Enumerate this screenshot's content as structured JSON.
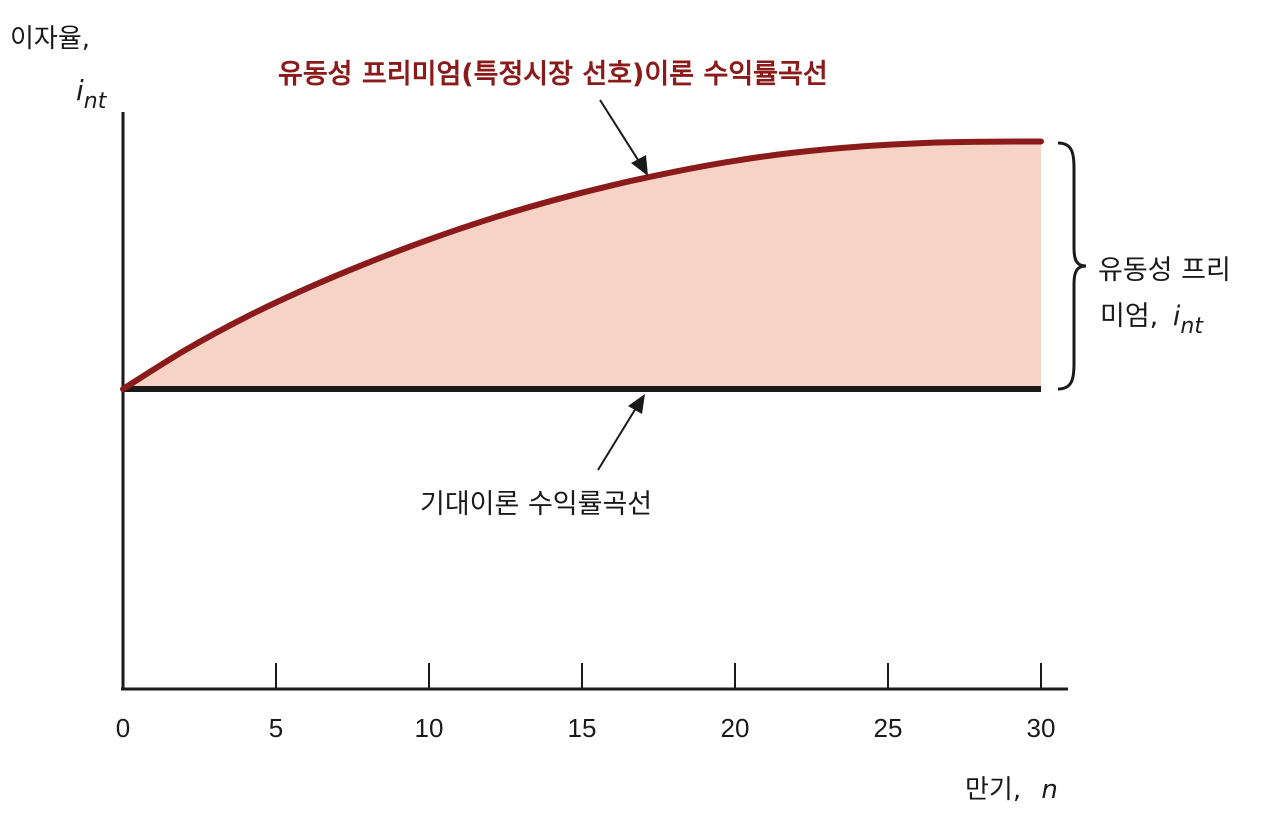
{
  "chart_data": {
    "type": "line",
    "xlabel": {
      "text": "만기,",
      "var": "n"
    },
    "ylabel": {
      "text": "이자율,",
      "var": "i",
      "sub": "nt"
    },
    "xlim": [
      0,
      30
    ],
    "x_ticks": [
      "0",
      "5",
      "10",
      "15",
      "20",
      "25",
      "30"
    ],
    "x_tick_values": [
      0,
      5,
      10,
      15,
      20,
      25,
      30
    ],
    "grid": false,
    "series": [
      {
        "name": "유동성 프리미엄(특정시장 선호)이론 수익률곡선",
        "color": "#8b1a1a",
        "x": [
          0,
          2,
          4,
          6,
          8,
          10,
          12,
          14,
          16,
          18,
          20,
          22,
          24,
          26,
          28,
          30
        ],
        "y": [
          0,
          15.5,
          29,
          40.7,
          51.1,
          60.5,
          68.9,
          76.2,
          82.5,
          87.9,
          92.4,
          95.8,
          98.1,
          99.5,
          100.1,
          100.2
        ]
      },
      {
        "name": "기대이론 수익률곡선",
        "color": "#1a1a1a",
        "x": [
          0,
          30
        ],
        "y": [
          0,
          0
        ]
      }
    ],
    "area_fill": {
      "color": "#f6d3c4",
      "between": [
        "유동성 프리미엄(특정시장 선호)이론 수익률곡선",
        "기대이론 수익률곡선"
      ]
    },
    "annotations": {
      "premium_curve_label": "유동성 프리미엄(특정시장 선호)이론 수익률곡선",
      "expectations_curve_label": "기대이론 수익률곡선",
      "premium_brace_label_line1": "유동성 프리",
      "premium_brace_label_line2": "미엄,",
      "premium_brace_var": "i",
      "premium_brace_sub": "nt"
    }
  }
}
